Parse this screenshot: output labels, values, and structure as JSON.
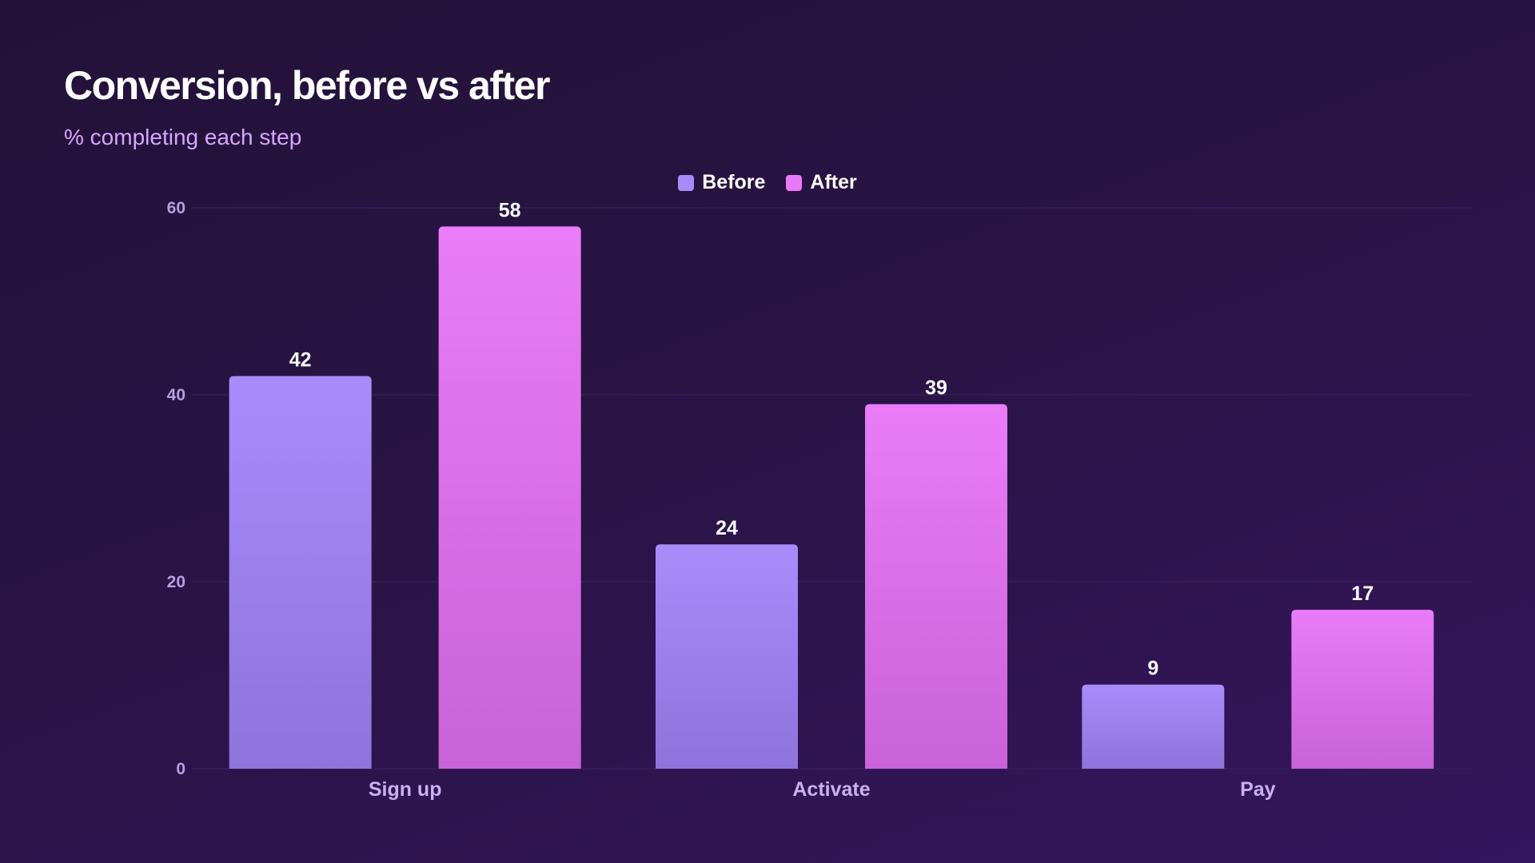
{
  "chart_data": {
    "type": "bar",
    "title": "Conversion, before vs after",
    "subtitle": "% completing each step",
    "categories": [
      "Sign up",
      "Activate",
      "Pay"
    ],
    "series": [
      {
        "name": "Before",
        "values": [
          42,
          24,
          9
        ],
        "color": "#a78bfa"
      },
      {
        "name": "After",
        "values": [
          58,
          39,
          17
        ],
        "color": "#e879f9"
      }
    ],
    "ylim": [
      0,
      60
    ],
    "yticks": [
      0,
      20,
      40,
      60
    ],
    "xlabel": "",
    "ylabel": "",
    "grid": true,
    "legend_position": "top-center",
    "data_labels": true
  }
}
